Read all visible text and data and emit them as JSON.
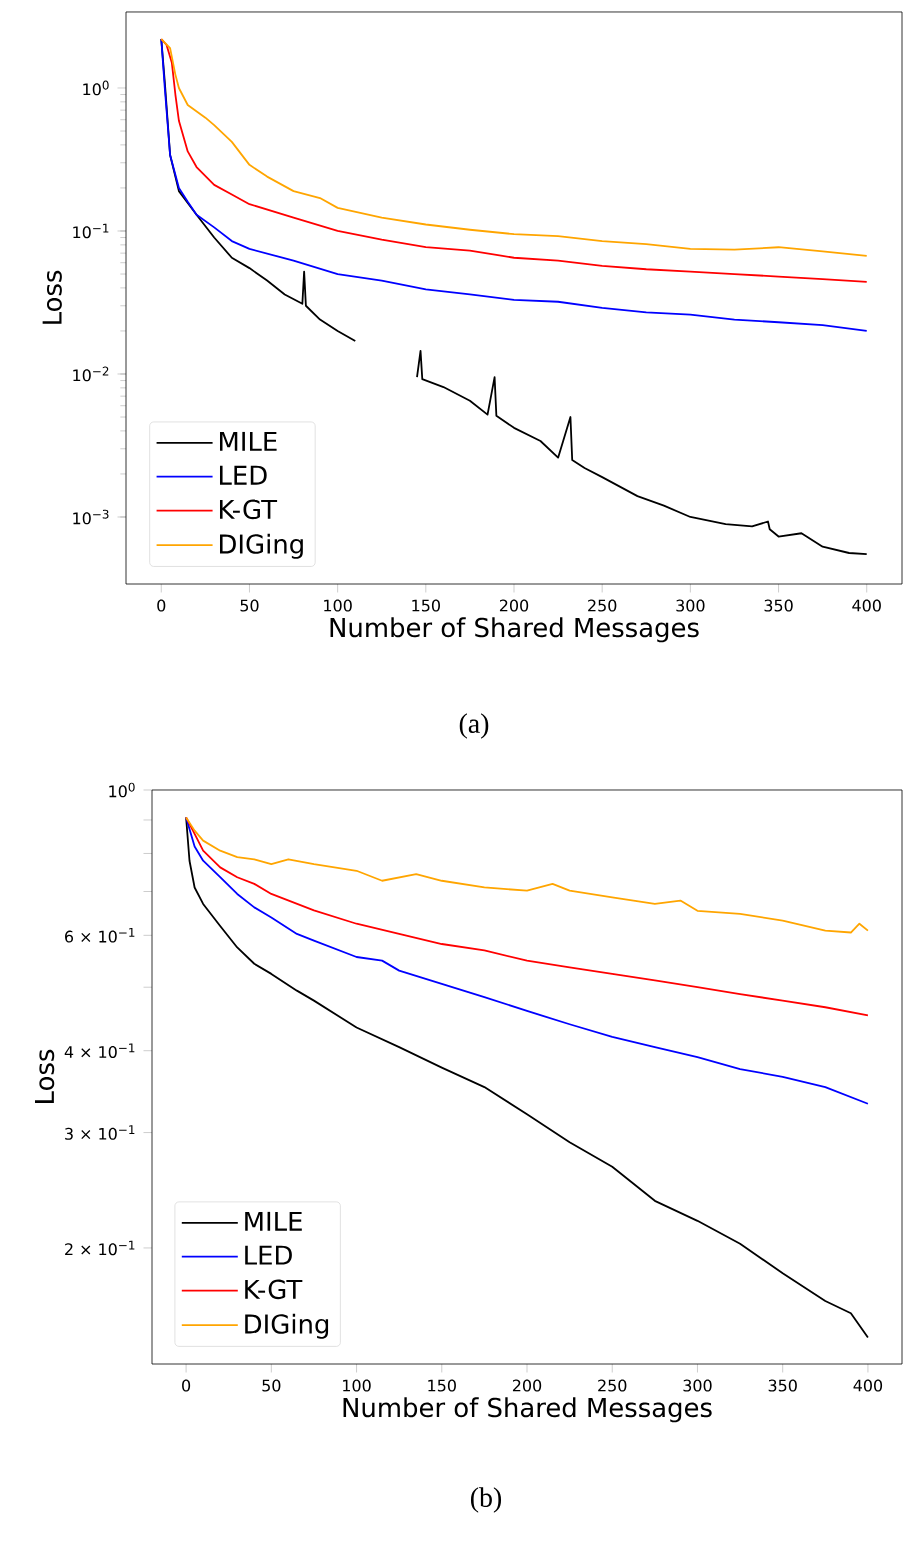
{
  "chart_data": [
    {
      "type": "line",
      "xlabel": "Number of Shared Messages",
      "ylabel": "Loss",
      "log": "y",
      "xlim": [
        -20,
        420
      ],
      "ylim": [
        0.00034,
        3.4
      ],
      "xticks": [
        0,
        50,
        100,
        150,
        200,
        250,
        300,
        350,
        400
      ],
      "yticks": [
        {
          "value": 0.001,
          "label": "10$^{−3}$"
        },
        {
          "value": 0.01,
          "label": "10$^{−2}$"
        },
        {
          "value": 0.1,
          "label": "10$^{−1}$"
        },
        {
          "value": 1,
          "label": "10$^{0}$"
        }
      ],
      "legend": "bottom left",
      "marker": "none",
      "line_style": "solid",
      "annotations": [
        "(a)"
      ],
      "series": [
        {
          "name": "MILE",
          "color": "#000000",
          "x": [
            0,
            2,
            5,
            10,
            20,
            30,
            40,
            50,
            60,
            70,
            80,
            81,
            82,
            90,
            100,
            110,
            120,
            130,
            145,
            147,
            148,
            160,
            175,
            185,
            189,
            190,
            200,
            215,
            225,
            232,
            233,
            240,
            250,
            270,
            285,
            300,
            320,
            335,
            344,
            345,
            350,
            363,
            375,
            390,
            400
          ],
          "values": [
            2.2,
            1.1,
            0.34,
            0.19,
            0.13,
            0.09,
            0.065,
            0.055,
            0.045,
            0.036,
            0.031,
            0.052,
            0.03,
            0.024,
            0.02,
            0.017,
            null,
            null,
            0.0095,
            0.0145,
            0.0092,
            0.0081,
            0.0065,
            0.0052,
            0.0095,
            0.0051,
            0.0042,
            0.0034,
            0.0026,
            0.005,
            0.0025,
            0.0022,
            0.0019,
            0.0014,
            0.0012,
            0.001,
            0.00089,
            0.00086,
            0.00093,
            0.00082,
            0.00073,
            0.00077,
            0.00062,
            0.00056,
            0.00055
          ]
        },
        {
          "name": "LED",
          "color": "#0000ff",
          "x": [
            0,
            2,
            5,
            10,
            15,
            20,
            30,
            40,
            50,
            75,
            100,
            125,
            150,
            175,
            200,
            225,
            250,
            275,
            300,
            325,
            350,
            375,
            400
          ],
          "values": [
            2.2,
            1.0,
            0.34,
            0.2,
            0.16,
            0.13,
            0.106,
            0.085,
            0.075,
            0.062,
            0.05,
            0.045,
            0.039,
            0.036,
            0.033,
            0.032,
            0.029,
            0.027,
            0.026,
            0.024,
            0.023,
            0.022,
            0.02
          ]
        },
        {
          "name": "K-GT",
          "color": "#ff0000",
          "x": [
            0,
            3,
            6,
            8,
            10,
            15,
            20,
            30,
            40,
            50,
            75,
            100,
            125,
            150,
            175,
            200,
            225,
            250,
            275,
            300,
            325,
            350,
            375,
            400
          ],
          "values": [
            2.2,
            2.0,
            1.5,
            0.9,
            0.59,
            0.36,
            0.28,
            0.21,
            0.18,
            0.154,
            0.124,
            0.1,
            0.087,
            0.077,
            0.073,
            0.065,
            0.062,
            0.057,
            0.054,
            0.052,
            0.05,
            0.048,
            0.046,
            0.044
          ]
        },
        {
          "name": "DIGing",
          "color": "#ffa500",
          "x": [
            0,
            5,
            8,
            10,
            15,
            25,
            30,
            40,
            50,
            60,
            75,
            90,
            100,
            125,
            150,
            175,
            200,
            225,
            250,
            275,
            300,
            325,
            350,
            375,
            400
          ],
          "values": [
            2.2,
            1.9,
            1.24,
            1.0,
            0.76,
            0.62,
            0.55,
            0.42,
            0.29,
            0.24,
            0.19,
            0.17,
            0.145,
            0.124,
            0.111,
            0.102,
            0.095,
            0.092,
            0.085,
            0.081,
            0.075,
            0.074,
            0.077,
            0.072,
            0.067
          ]
        }
      ]
    },
    {
      "type": "line",
      "xlabel": "Number of Shared Messages",
      "ylabel": "Loss",
      "log": "y",
      "xlim": [
        -20,
        420
      ],
      "ylim": [
        0.133,
        1.0
      ],
      "xticks": [
        0,
        50,
        100,
        150,
        200,
        250,
        300,
        350,
        400
      ],
      "yticks": [
        {
          "value": 0.2,
          "label": "2 × 10$^{−1}$"
        },
        {
          "value": 0.3,
          "label": "3 × 10$^{−1}$"
        },
        {
          "value": 0.4,
          "label": "4 × 10$^{−1}$"
        },
        {
          "value": 0.5,
          "label": null
        },
        {
          "value": 0.6,
          "label": "6 × 10$^{−1}$"
        },
        {
          "value": 0.7,
          "label": null
        },
        {
          "value": 0.8,
          "label": null
        },
        {
          "value": 0.9,
          "label": null
        },
        {
          "value": 1.0,
          "label": "10$^{0}$"
        }
      ],
      "legend": "bottom left",
      "marker": "none",
      "line_style": "solid",
      "annotations": [
        "(b)"
      ],
      "series": [
        {
          "name": "MILE",
          "color": "#000000",
          "x": [
            0,
            2,
            5,
            10,
            20,
            30,
            40,
            50,
            65,
            75,
            100,
            125,
            150,
            175,
            200,
            225,
            250,
            275,
            300,
            325,
            350,
            375,
            390,
            400
          ],
          "values": [
            0.908,
            0.78,
            0.71,
            0.67,
            0.62,
            0.575,
            0.543,
            0.524,
            0.494,
            0.477,
            0.434,
            0.405,
            0.377,
            0.352,
            0.32,
            0.29,
            0.266,
            0.236,
            0.22,
            0.203,
            0.183,
            0.166,
            0.159,
            0.146
          ]
        },
        {
          "name": "LED",
          "color": "#0000ff",
          "x": [
            0,
            5,
            10,
            20,
            30,
            40,
            50,
            65,
            75,
            100,
            115,
            125,
            150,
            175,
            200,
            225,
            250,
            275,
            300,
            325,
            350,
            375,
            400
          ],
          "values": [
            0.908,
            0.82,
            0.78,
            0.736,
            0.694,
            0.662,
            0.639,
            0.603,
            0.589,
            0.556,
            0.549,
            0.53,
            0.506,
            0.483,
            0.46,
            0.439,
            0.42,
            0.405,
            0.391,
            0.375,
            0.365,
            0.352,
            0.332
          ]
        },
        {
          "name": "K-GT",
          "color": "#ff0000",
          "x": [
            0,
            5,
            10,
            20,
            30,
            40,
            50,
            75,
            100,
            125,
            150,
            175,
            200,
            225,
            250,
            275,
            300,
            325,
            350,
            375,
            400
          ],
          "values": [
            0.908,
            0.857,
            0.808,
            0.762,
            0.736,
            0.719,
            0.694,
            0.655,
            0.625,
            0.603,
            0.582,
            0.569,
            0.549,
            0.536,
            0.524,
            0.512,
            0.5,
            0.488,
            0.477,
            0.466,
            0.453
          ]
        },
        {
          "name": "DIGing",
          "color": "#ffa500",
          "x": [
            0,
            5,
            10,
            20,
            30,
            40,
            50,
            60,
            75,
            100,
            115,
            135,
            150,
            175,
            200,
            215,
            225,
            250,
            275,
            290,
            300,
            325,
            350,
            375,
            390,
            395,
            400
          ],
          "values": [
            0.908,
            0.867,
            0.837,
            0.808,
            0.79,
            0.784,
            0.771,
            0.784,
            0.771,
            0.753,
            0.727,
            0.744,
            0.727,
            0.71,
            0.702,
            0.719,
            0.702,
            0.686,
            0.67,
            0.678,
            0.654,
            0.647,
            0.632,
            0.61,
            0.606,
            0.625,
            0.61
          ]
        }
      ]
    }
  ]
}
